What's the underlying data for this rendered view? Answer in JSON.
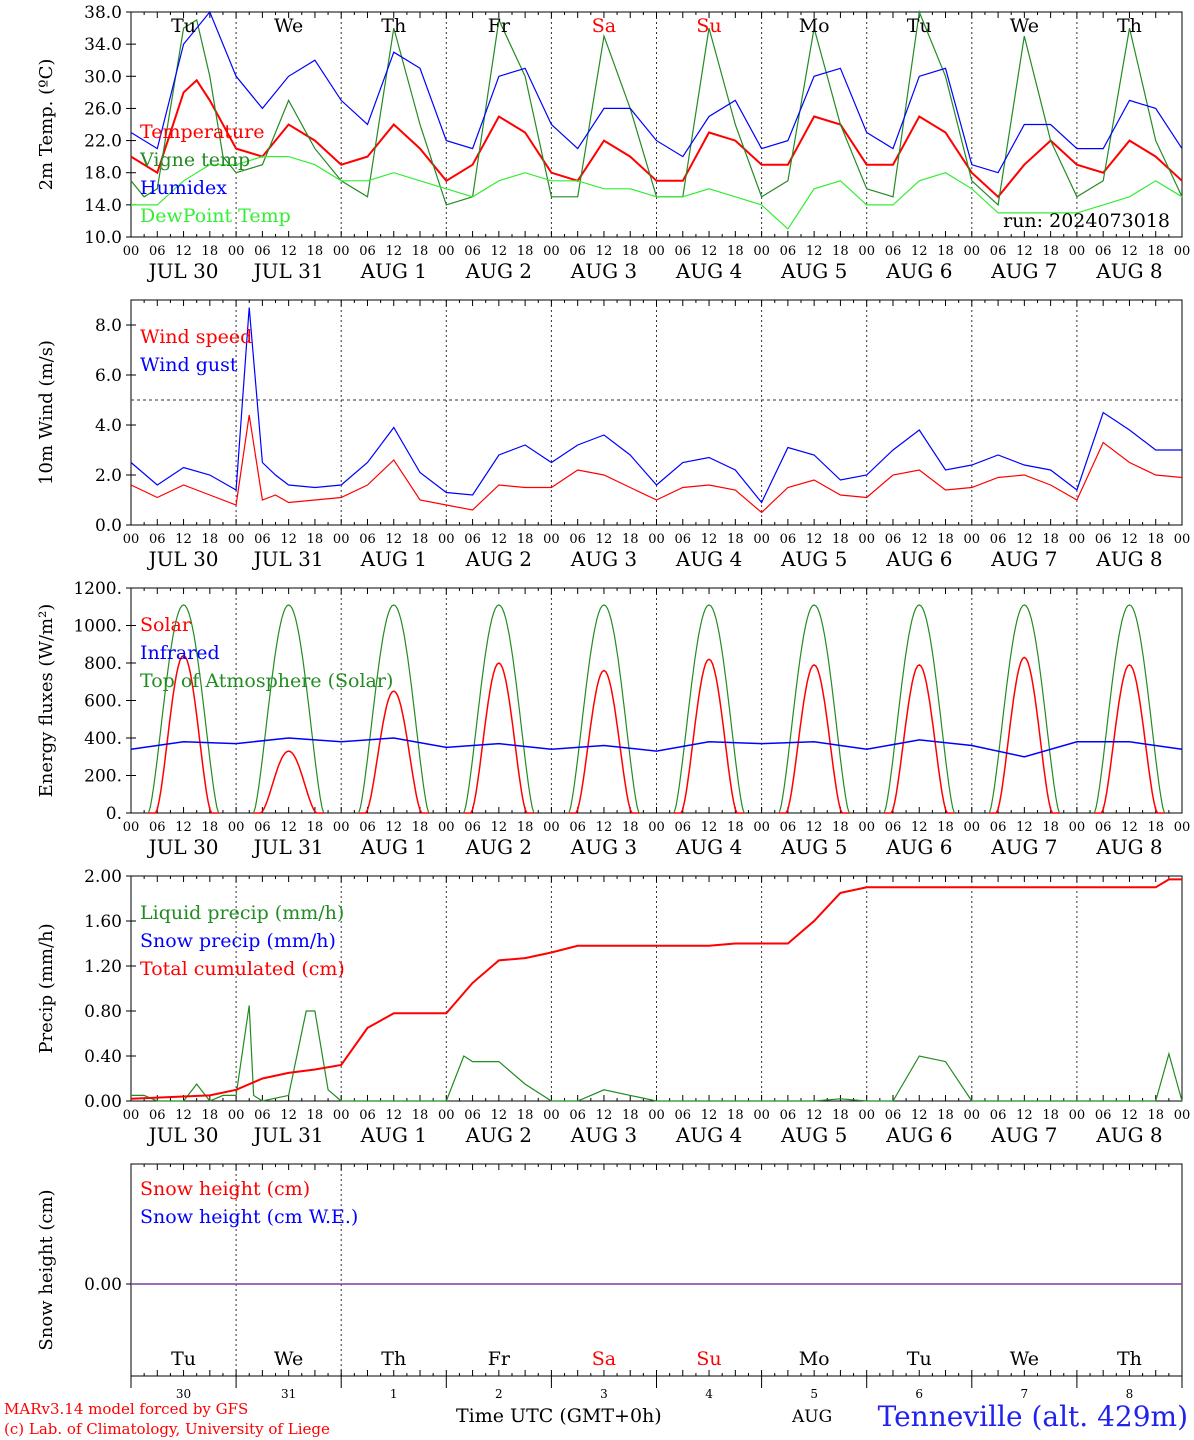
{
  "chart_data": [
    {
      "type": "line",
      "panel": "temperature",
      "ylabel": "2m Temp. (ºC)",
      "ylim": [
        10,
        38
      ],
      "yticks": [
        "10.0",
        "14.0",
        "18.0",
        "22.0",
        "26.0",
        "30.0",
        "34.0",
        "38.0"
      ],
      "ytick_values": [
        10,
        14,
        18,
        22,
        26,
        30,
        34,
        38
      ],
      "annotation": "run: 2024073018",
      "grid": "vertical dotted at 00 UTC",
      "series": [
        {
          "name": "Temperature",
          "color": "#ff0000",
          "x_hours": [
            0,
            6,
            12,
            15,
            18,
            24,
            30,
            36,
            42,
            48,
            54,
            60,
            66,
            72,
            78,
            84,
            90,
            96,
            102,
            108,
            114,
            120,
            126,
            132,
            138,
            144,
            150,
            156,
            162,
            168,
            174,
            180,
            186,
            192,
            198,
            204,
            210,
            216,
            222,
            228,
            234,
            240
          ],
          "values": [
            20,
            18,
            28,
            29.5,
            27,
            21,
            20,
            24,
            22,
            19,
            20,
            24,
            21,
            17,
            19,
            25,
            23,
            18,
            17,
            22,
            20,
            17,
            17,
            23,
            22,
            19,
            19,
            25,
            24,
            19,
            19,
            25,
            23,
            18,
            15,
            19,
            22,
            19,
            18,
            22,
            20,
            17
          ]
        },
        {
          "name": "Vigne temp",
          "color": "#228b22",
          "x_hours": [
            0,
            3,
            6,
            9,
            12,
            15,
            18,
            21,
            24,
            30,
            36,
            42,
            48,
            54,
            60,
            66,
            72,
            78,
            84,
            90,
            96,
            102,
            108,
            114,
            120,
            126,
            132,
            138,
            144,
            150,
            156,
            162,
            168,
            174,
            180,
            186,
            192,
            198,
            204,
            210,
            216,
            222,
            228,
            234,
            240
          ],
          "values": [
            17,
            15,
            16,
            26,
            36,
            37,
            30,
            20,
            18,
            19,
            27,
            21,
            17,
            15,
            36,
            24,
            14,
            15,
            37,
            30,
            15,
            15,
            35,
            26,
            15,
            15,
            36,
            24,
            15,
            17,
            36,
            24,
            16,
            15,
            38,
            30,
            17,
            14,
            35,
            22,
            15,
            17,
            36,
            22,
            15
          ]
        },
        {
          "name": "Humidex",
          "color": "#0000ff",
          "x_hours": [
            0,
            6,
            12,
            18,
            24,
            30,
            36,
            42,
            48,
            54,
            60,
            66,
            72,
            78,
            84,
            90,
            96,
            102,
            108,
            114,
            120,
            126,
            132,
            138,
            144,
            150,
            156,
            162,
            168,
            174,
            180,
            186,
            192,
            198,
            204,
            210,
            216,
            222,
            228,
            234,
            240
          ],
          "values": [
            23,
            21,
            34,
            38,
            30,
            26,
            30,
            32,
            27,
            24,
            33,
            31,
            22,
            21,
            30,
            31,
            24,
            21,
            26,
            26,
            22,
            20,
            25,
            27,
            21,
            22,
            30,
            31,
            23,
            21,
            30,
            31,
            19,
            18,
            24,
            24,
            21,
            21,
            27,
            26,
            21
          ]
        },
        {
          "name": "DewPoint Temp",
          "color": "#33ee33",
          "x_hours": [
            0,
            6,
            12,
            18,
            24,
            30,
            36,
            42,
            48,
            54,
            60,
            66,
            72,
            78,
            84,
            90,
            96,
            102,
            108,
            114,
            120,
            126,
            132,
            138,
            144,
            150,
            156,
            162,
            168,
            174,
            180,
            186,
            192,
            198,
            204,
            210,
            216,
            222,
            228,
            234,
            240
          ],
          "values": [
            14,
            14,
            17,
            19,
            19,
            20,
            20,
            19,
            17,
            17,
            18,
            17,
            16,
            15,
            17,
            18,
            17,
            17,
            16,
            16,
            15,
            15,
            16,
            15,
            14,
            11,
            16,
            17,
            14,
            14,
            17,
            18,
            16,
            13,
            13,
            13,
            13,
            14,
            15,
            17,
            15
          ]
        }
      ]
    },
    {
      "type": "line",
      "panel": "wind",
      "ylabel": "10m Wind (m/s)",
      "ylim": [
        0,
        9
      ],
      "yticks": [
        "0.0",
        "2.0",
        "4.0",
        "6.0",
        "8.0"
      ],
      "ytick_values": [
        0,
        2,
        4,
        6,
        8
      ],
      "reference_line": 5,
      "series": [
        {
          "name": "Wind speed",
          "color": "#ff0000",
          "x_hours": [
            0,
            6,
            12,
            18,
            24,
            27,
            30,
            33,
            36,
            42,
            48,
            54,
            60,
            66,
            72,
            78,
            84,
            90,
            96,
            102,
            108,
            114,
            120,
            126,
            132,
            138,
            144,
            150,
            156,
            162,
            168,
            174,
            180,
            186,
            192,
            198,
            204,
            210,
            216,
            222,
            228,
            234,
            240
          ],
          "values": [
            1.6,
            1.1,
            1.6,
            1.2,
            0.8,
            4.4,
            1.0,
            1.2,
            0.9,
            1.0,
            1.1,
            1.6,
            2.6,
            1.0,
            0.8,
            0.6,
            1.6,
            1.5,
            1.5,
            2.2,
            2.0,
            1.5,
            1.0,
            1.5,
            1.6,
            1.4,
            0.5,
            1.5,
            1.8,
            1.2,
            1.1,
            2.0,
            2.2,
            1.4,
            1.5,
            1.9,
            2.0,
            1.6,
            1.0,
            3.3,
            2.5,
            2.0,
            1.9
          ]
        },
        {
          "name": "Wind gust",
          "color": "#0000ff",
          "x_hours": [
            0,
            6,
            12,
            18,
            24,
            27,
            30,
            33,
            36,
            42,
            48,
            54,
            60,
            66,
            72,
            78,
            84,
            90,
            96,
            102,
            108,
            114,
            120,
            126,
            132,
            138,
            144,
            150,
            156,
            162,
            168,
            174,
            180,
            186,
            192,
            198,
            204,
            210,
            216,
            222,
            228,
            234,
            240
          ],
          "values": [
            2.5,
            1.6,
            2.3,
            2.0,
            1.4,
            8.7,
            2.5,
            2.0,
            1.6,
            1.5,
            1.6,
            2.5,
            3.9,
            2.1,
            1.3,
            1.2,
            2.8,
            3.2,
            2.5,
            3.2,
            3.6,
            2.8,
            1.6,
            2.5,
            2.7,
            2.2,
            0.9,
            3.1,
            2.8,
            1.8,
            2.0,
            3.0,
            3.8,
            2.2,
            2.4,
            2.8,
            2.4,
            2.2,
            1.4,
            4.5,
            3.8,
            3.0,
            3.0
          ]
        }
      ]
    },
    {
      "type": "line",
      "panel": "energy",
      "ylabel": "Energy fluxes (W/m²)",
      "ylim": [
        0,
        1200
      ],
      "yticks": [
        "0.",
        "200.",
        "400.",
        "600.",
        "800.",
        "1000.",
        "1200."
      ],
      "ytick_values": [
        0,
        200,
        400,
        600,
        800,
        1000,
        1200
      ],
      "series": [
        {
          "name": "Solar",
          "color": "#ff0000",
          "daily_peaks": [
            840,
            330,
            650,
            800,
            760,
            820,
            790,
            790,
            830,
            790
          ]
        },
        {
          "name": "Infrared",
          "color": "#0000ff",
          "x_hours": [
            0,
            12,
            24,
            36,
            48,
            60,
            72,
            84,
            96,
            108,
            120,
            132,
            144,
            156,
            168,
            180,
            192,
            204,
            216,
            228,
            240
          ],
          "values": [
            340,
            380,
            370,
            400,
            380,
            400,
            350,
            370,
            340,
            360,
            330,
            380,
            370,
            380,
            340,
            390,
            360,
            300,
            380,
            380,
            340
          ]
        },
        {
          "name": "Top of Atmosphere (Solar)",
          "color": "#228b22",
          "daily_peak": 1110
        }
      ]
    },
    {
      "type": "line",
      "panel": "precip",
      "ylabel": "Precip (mm/h)",
      "ylim": [
        0,
        2
      ],
      "yticks": [
        "0.00",
        "0.40",
        "0.80",
        "1.20",
        "1.60",
        "2.00"
      ],
      "ytick_values": [
        0,
        0.4,
        0.8,
        1.2,
        1.6,
        2.0
      ],
      "series": [
        {
          "name": "Liquid precip (mm/h)",
          "color": "#228b22",
          "x_hours": [
            0,
            3,
            6,
            9,
            12,
            15,
            18,
            21,
            24,
            27,
            28,
            30,
            36,
            40,
            42,
            45,
            48,
            54,
            60,
            66,
            72,
            76,
            78,
            84,
            90,
            96,
            102,
            108,
            114,
            120,
            126,
            132,
            138,
            144,
            150,
            156,
            162,
            168,
            174,
            180,
            186,
            192,
            198,
            204,
            210,
            216,
            222,
            228,
            234,
            237,
            240
          ],
          "values": [
            0.05,
            0.05,
            0,
            0,
            0,
            0.15,
            0,
            0.05,
            0.05,
            0.85,
            0.05,
            0,
            0.05,
            0.8,
            0.8,
            0.1,
            0,
            0,
            0,
            0,
            0,
            0.4,
            0.35,
            0.35,
            0.15,
            0,
            0,
            0.1,
            0.05,
            0,
            0,
            0,
            0,
            0,
            0,
            0,
            0.02,
            0,
            0,
            0.4,
            0.35,
            0,
            0,
            0,
            0,
            0,
            0,
            0,
            0,
            0.42,
            0
          ]
        },
        {
          "name": "Snow precip (mm/h)",
          "color": "#0000ff"
        },
        {
          "name": "Total cumulated (cm)",
          "color": "#ff0000",
          "x_hours": [
            0,
            18,
            24,
            30,
            36,
            42,
            48,
            54,
            60,
            66,
            72,
            78,
            84,
            90,
            96,
            102,
            108,
            114,
            120,
            126,
            132,
            138,
            144,
            150,
            156,
            162,
            168,
            174,
            180,
            186,
            192,
            198,
            204,
            210,
            216,
            222,
            228,
            234,
            237,
            240
          ],
          "values": [
            0.02,
            0.05,
            0.1,
            0.2,
            0.25,
            0.28,
            0.32,
            0.65,
            0.78,
            0.78,
            0.78,
            1.05,
            1.25,
            1.27,
            1.32,
            1.38,
            1.38,
            1.38,
            1.38,
            1.38,
            1.38,
            1.4,
            1.4,
            1.4,
            1.6,
            1.85,
            1.9,
            1.9,
            1.9,
            1.9,
            1.9,
            1.9,
            1.9,
            1.9,
            1.9,
            1.9,
            1.9,
            1.9,
            1.97,
            1.97
          ]
        }
      ]
    },
    {
      "type": "line",
      "panel": "snow",
      "ylabel": "Snow height (cm)",
      "ytick_values": [
        0
      ],
      "yticks": [
        "0.00"
      ],
      "series": [
        {
          "name": "Snow height (cm)",
          "color": "#ff0000",
          "values": [
            0
          ]
        },
        {
          "name": "Snow height (cm W.E.)",
          "color": "#0000ff",
          "values": [
            0
          ]
        }
      ]
    }
  ],
  "x_axis": {
    "hour_ticks": [
      "00",
      "06",
      "12",
      "18"
    ],
    "last_tick": "00",
    "date_labels": [
      "JUL 30",
      "JUL 31",
      "AUG  1",
      "AUG  2",
      "AUG  3",
      "AUG  4",
      "AUG  5",
      "AUG  6",
      "AUG  7",
      "AUG  8"
    ],
    "day_names": [
      "Tu",
      "We",
      "Th",
      "Fr",
      "Sa",
      "Su",
      "Mo",
      "Tu",
      "We",
      "Th"
    ],
    "day_colors": [
      "#000000",
      "#000000",
      "#000000",
      "#000000",
      "#ff0000",
      "#ff0000",
      "#000000",
      "#000000",
      "#000000",
      "#000000"
    ],
    "day_numbers": [
      "30",
      "31",
      "1",
      "2",
      "3",
      "4",
      "5",
      "6",
      "7",
      "8"
    ]
  },
  "footer": {
    "credit_line1": "MARv3.14 model forced by GFS",
    "credit_line2": "(c) Lab. of Climatology, University of Liege",
    "xlabel": "Time UTC (GMT+0h)",
    "month": "AUG",
    "station": "Tenneville (alt. 429m)"
  }
}
